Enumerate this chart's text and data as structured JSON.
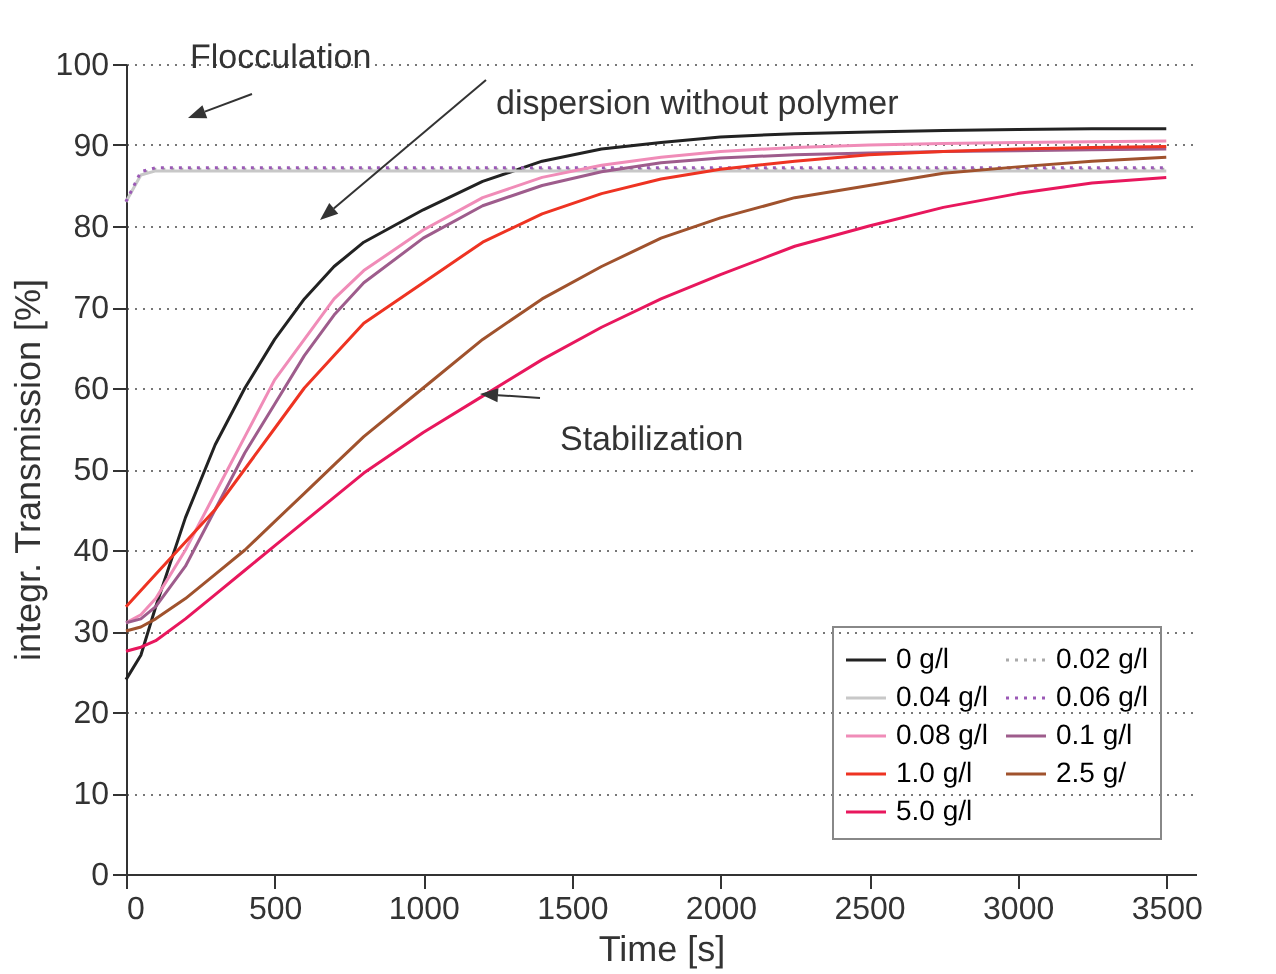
{
  "chart_data": {
    "type": "line",
    "xlabel": "Time [s]",
    "ylabel": "integr. Transmission [%]",
    "x": [
      0,
      50,
      100,
      200,
      300,
      400,
      500,
      600,
      700,
      800,
      1000,
      1200,
      1400,
      1600,
      1800,
      2000,
      2250,
      2500,
      2750,
      3000,
      3250,
      3500
    ],
    "series": [
      {
        "name": "0 g/l",
        "color": "#222222",
        "line_style": "solid",
        "values": [
          24,
          27,
          33,
          44,
          53,
          60,
          66,
          71,
          75,
          78,
          82,
          85.5,
          88,
          89.5,
          90.3,
          91,
          91.4,
          91.6,
          91.8,
          91.9,
          92,
          92
        ]
      },
      {
        "name": "0.02 g/l",
        "color": "#aaaaaa",
        "line_style": "dotted",
        "values": [
          83,
          86.5,
          87,
          87,
          87,
          87,
          87,
          87,
          87,
          87,
          87,
          87,
          87,
          87,
          87,
          87,
          87,
          87,
          87,
          87,
          87,
          87
        ]
      },
      {
        "name": "0.04 g/l",
        "color": "#c8c8c8",
        "line_style": "solid",
        "values": [
          83,
          86.3,
          86.8,
          86.8,
          86.8,
          86.8,
          86.8,
          86.8,
          86.8,
          86.8,
          86.8,
          86.8,
          86.8,
          86.8,
          86.8,
          86.8,
          86.8,
          86.8,
          86.8,
          86.8,
          86.8,
          86.8
        ]
      },
      {
        "name": "0.06 g/l",
        "color": "#9b59b6",
        "line_style": "dotted",
        "values": [
          83,
          86.7,
          87.2,
          87.2,
          87.2,
          87.2,
          87.2,
          87.2,
          87.2,
          87.2,
          87.2,
          87.2,
          87.2,
          87.2,
          87.2,
          87.2,
          87.2,
          87.2,
          87.2,
          87.2,
          87.2,
          87.2
        ]
      },
      {
        "name": "0.08 g/l",
        "color": "#f08cb8",
        "line_style": "solid",
        "values": [
          31,
          32,
          34,
          40,
          47,
          54,
          61,
          66,
          71,
          74.5,
          79.5,
          83.5,
          86,
          87.5,
          88.5,
          89.2,
          89.7,
          90,
          90.2,
          90.3,
          90.4,
          90.5
        ]
      },
      {
        "name": "0.1 g/l",
        "color": "#9e5c8c",
        "line_style": "solid",
        "values": [
          31,
          31.5,
          33,
          38,
          45,
          52,
          58,
          64,
          69,
          73,
          78.5,
          82.5,
          85,
          86.7,
          87.8,
          88.4,
          88.8,
          89,
          89.2,
          89.3,
          89.4,
          89.5
        ]
      },
      {
        "name": "1.0 g/l",
        "color": "#ee3322",
        "line_style": "solid",
        "values": [
          33,
          35,
          37,
          41,
          45,
          50,
          55,
          60,
          64,
          68,
          73,
          78,
          81.5,
          84,
          85.8,
          87,
          88,
          88.8,
          89.2,
          89.5,
          89.7,
          89.8
        ]
      },
      {
        "name": "2.5 g/",
        "color": "#a0522d",
        "line_style": "solid",
        "values": [
          30,
          30.5,
          31.5,
          34,
          37,
          40,
          43.5,
          47,
          50.5,
          54,
          60,
          66,
          71,
          75,
          78.5,
          81,
          83.5,
          85,
          86.5,
          87.3,
          88,
          88.5
        ]
      },
      {
        "name": "5.0 g/l",
        "color": "#e8175d",
        "line_style": "solid",
        "values": [
          27.5,
          28,
          28.8,
          31.5,
          34.5,
          37.5,
          40.5,
          43.5,
          46.5,
          49.5,
          54.5,
          59,
          63.5,
          67.5,
          71,
          74,
          77.5,
          80,
          82.3,
          84,
          85.3,
          86
        ]
      }
    ],
    "xlim": [
      0,
      3600
    ],
    "ylim": [
      0,
      100
    ],
    "xticks": [
      0,
      500,
      {
        "value": 1000,
        "label": "1000"
      },
      {
        "value": 1500,
        "label": "1500"
      },
      {
        "value": 2000,
        "label": "2000"
      },
      {
        "value": 2500,
        "label": "2500"
      },
      {
        "value": 3000,
        "label": "3000"
      },
      {
        "value": 3500,
        "label": "3500"
      }
    ],
    "yticks": [
      0,
      10,
      20,
      30,
      40,
      50,
      60,
      70,
      80,
      90,
      100
    ],
    "grid": "y",
    "legend": "bottom right",
    "annotations": [
      "Flocculation",
      "dispersion without polymer",
      "Stabilization"
    ]
  }
}
